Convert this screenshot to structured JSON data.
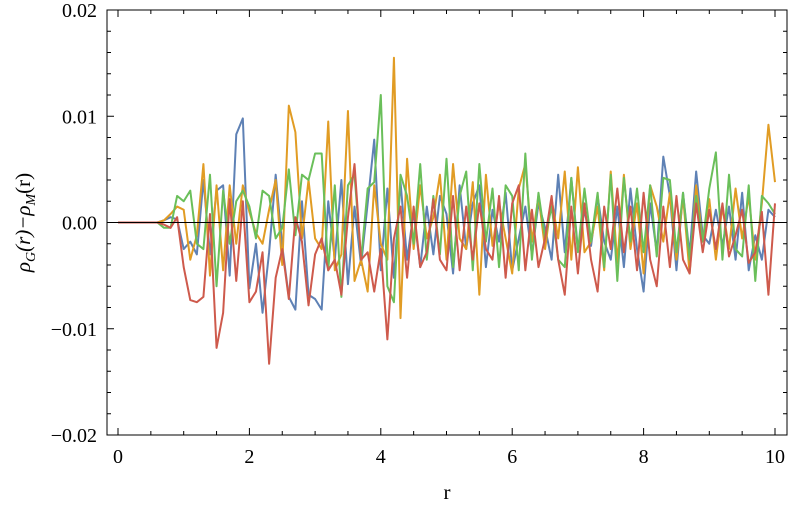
{
  "chart_data": {
    "type": "line",
    "title": "",
    "xlabel": "r",
    "ylabel": "ρ_G(r)−ρ_M(r)",
    "xlim": [
      0,
      10
    ],
    "ylim": [
      -0.02,
      0.02
    ],
    "x_ticks": [
      0,
      2,
      4,
      6,
      8,
      10
    ],
    "y_ticks": [
      -0.02,
      -0.01,
      0.0,
      0.01,
      0.02
    ],
    "x_tick_labels": [
      "0",
      "2",
      "4",
      "6",
      "8",
      "10"
    ],
    "y_tick_labels": [
      "−0.02",
      "−0.01",
      "0.00",
      "0.01",
      "0.02"
    ],
    "grid": false,
    "zero_line": true,
    "x": [
      0.0,
      0.1,
      0.2,
      0.3,
      0.4,
      0.5,
      0.6,
      0.7,
      0.8,
      0.9,
      1.0,
      1.1,
      1.2,
      1.3,
      1.4,
      1.5,
      1.6,
      1.7,
      1.8,
      1.9,
      2.0,
      2.1,
      2.2,
      2.3,
      2.4,
      2.5,
      2.6,
      2.7,
      2.8,
      2.9,
      3.0,
      3.1,
      3.2,
      3.3,
      3.4,
      3.5,
      3.6,
      3.7,
      3.8,
      3.9,
      4.0,
      4.1,
      4.2,
      4.3,
      4.4,
      4.5,
      4.6,
      4.7,
      4.8,
      4.9,
      5.0,
      5.1,
      5.2,
      5.3,
      5.4,
      5.5,
      5.6,
      5.7,
      5.8,
      5.9,
      6.0,
      6.1,
      6.2,
      6.3,
      6.4,
      6.5,
      6.6,
      6.7,
      6.8,
      6.9,
      7.0,
      7.1,
      7.2,
      7.3,
      7.4,
      7.5,
      7.6,
      7.7,
      7.8,
      7.9,
      8.0,
      8.1,
      8.2,
      8.3,
      8.4,
      8.5,
      8.6,
      8.7,
      8.8,
      8.9,
      9.0,
      9.1,
      9.2,
      9.3,
      9.4,
      9.5,
      9.6,
      9.7,
      9.8,
      9.9,
      10.0
    ],
    "series": [
      {
        "color": "#5e81b5",
        "values": [
          0,
          0,
          0,
          0,
          0,
          0,
          0,
          0.0002,
          0.0005,
          0.0003,
          -0.0025,
          -0.0018,
          -0.003,
          0.004,
          -0.003,
          0.003,
          0.0035,
          -0.005,
          0.0083,
          0.0098,
          -0.0062,
          -0.002,
          -0.0085,
          -0.0028,
          0.0045,
          -0.0022,
          -0.007,
          -0.0082,
          0.002,
          -0.0068,
          -0.0072,
          -0.0082,
          0.002,
          -0.0035,
          0.004,
          -0.0058,
          0.0015,
          -0.004,
          0.0018,
          0.0078,
          -0.0045,
          0.0032,
          -0.0052,
          0.0038,
          -0.0035,
          0.001,
          -0.0042,
          0.0015,
          -0.003,
          0.0025,
          0.0008,
          -0.0048,
          0.0035,
          -0.0025,
          0.0018,
          0.0035,
          -0.0042,
          0.0012,
          -0.0018,
          0.0028,
          -0.0045,
          -0.0015,
          0.0015,
          -0.003,
          0.0018,
          -0.0005,
          -0.0035,
          0.0045,
          -0.0028,
          0.0042,
          -0.0025,
          0.0012,
          -0.0022,
          0.0025,
          -0.0018,
          -0.0035,
          0.0015,
          -0.0042,
          0.0032,
          -0.0025,
          -0.0065,
          0.0018,
          -0.0028,
          0.0062,
          0.0025,
          -0.0045,
          0.0028,
          -0.003,
          0.0048,
          -0.0012,
          -0.002,
          0.0012,
          -0.0022,
          0.0015,
          -0.0035,
          0.0028,
          -0.0045,
          -0.0012,
          -0.0035,
          0.0012,
          0.0005
        ]
      },
      {
        "color": "#e19c24",
        "values": [
          0,
          0,
          0,
          0,
          0,
          0,
          0,
          0.0002,
          0.0008,
          0.0015,
          0.0012,
          -0.0035,
          -0.0012,
          0.0055,
          -0.005,
          0.0035,
          -0.0045,
          0.0035,
          -0.002,
          0.0035,
          0.001,
          -0.001,
          -0.002,
          0.0012,
          0.004,
          -0.004,
          0.011,
          0.0085,
          -0.0015,
          0.004,
          -0.0015,
          -0.0025,
          0.0095,
          -0.0045,
          -0.003,
          0.0105,
          -0.0055,
          -0.0035,
          -0.0065,
          0.0035,
          -0.002,
          -0.0035,
          0.0155,
          -0.009,
          0.006,
          -0.0025,
          0.0035,
          -0.0015,
          0.0005,
          0.0045,
          -0.0035,
          0.0055,
          -0.0015,
          -0.0025,
          0.0038,
          -0.0068,
          0.0045,
          -0.0022,
          0.0018,
          -0.0015,
          -0.0048,
          0.0032,
          0.0055,
          -0.0018,
          0.0025,
          -0.0025,
          0.0022,
          -0.0015,
          0.0048,
          -0.0035,
          0.0052,
          -0.0028,
          -0.0018,
          0.0015,
          -0.0045,
          0.0048,
          -0.0038,
          0.0045,
          -0.0025,
          0.0018,
          -0.0048,
          0.0035,
          0.0015,
          -0.0018,
          0.0028,
          -0.0035,
          0.0025,
          -0.0048,
          0.0035,
          -0.0018,
          0.0022,
          -0.0035,
          0.0015,
          -0.0025,
          0.0032,
          -0.0015,
          0.0025,
          -0.0035,
          0.0018,
          0.0092,
          0.0038
        ]
      },
      {
        "color": "#6abf5a",
        "values": [
          0,
          0,
          0,
          0,
          0,
          0,
          0,
          -0.0005,
          -0.0005,
          0.0025,
          0.002,
          0.003,
          -0.002,
          -0.0025,
          0.0045,
          -0.006,
          0.003,
          -0.002,
          0.002,
          0.003,
          0.0015,
          -0.0015,
          0.003,
          0.0025,
          -0.0015,
          -0.0005,
          0.005,
          -0.0012,
          0.0045,
          0.004,
          0.0065,
          0.0065,
          -0.0045,
          0.0035,
          -0.007,
          0.0035,
          0.0045,
          -0.0035,
          0.0032,
          0.0038,
          0.012,
          -0.006,
          -0.0075,
          0.0045,
          0.0025,
          -0.002,
          0.0055,
          -0.0035,
          0.0025,
          -0.003,
          0.006,
          -0.0042,
          0.0025,
          0.0048,
          -0.0045,
          0.0055,
          -0.0018,
          0.0032,
          -0.0042,
          0.0035,
          0.0025,
          -0.0045,
          0.0065,
          -0.0035,
          0.0028,
          -0.0015,
          0.0015,
          -0.0035,
          -0.0042,
          0.0042,
          -0.0028,
          0.0032,
          -0.0018,
          0.0028,
          -0.0042,
          0.0045,
          -0.0055,
          0.0042,
          -0.0018,
          0.0032,
          -0.0028,
          0.0035,
          -0.0032,
          0.0042,
          0.004,
          -0.0028,
          0.0028,
          -0.0035,
          0.0025,
          -0.0018,
          0.0032,
          0.0066,
          -0.0035,
          0.0045,
          -0.0025,
          -0.0032,
          0.0035,
          -0.0055,
          0.0025,
          0.0018,
          0.0008
        ]
      },
      {
        "color": "#ce5a4c",
        "values": [
          0,
          0,
          0,
          0,
          0,
          0,
          0,
          -0.0002,
          -0.0005,
          0.0005,
          -0.0042,
          -0.0073,
          -0.0075,
          -0.007,
          0.0008,
          -0.0118,
          -0.0085,
          0.0022,
          -0.0055,
          0.002,
          -0.0075,
          -0.0065,
          -0.0028,
          -0.0133,
          -0.0052,
          -0.0025,
          -0.0072,
          0.0005,
          -0.0018,
          -0.0078,
          -0.003,
          -0.0015,
          -0.0045,
          -0.0035,
          -0.0068,
          0.0005,
          0.0055,
          -0.0035,
          -0.0028,
          -0.0065,
          -0.0025,
          -0.011,
          -0.0015,
          0.0015,
          -0.0052,
          0.0015,
          -0.0042,
          -0.0028,
          0.0022,
          -0.0035,
          -0.0045,
          0.0025,
          -0.0045,
          0.0015,
          -0.0035,
          0.0018,
          -0.0025,
          -0.0035,
          0.0025,
          -0.0052,
          0.0018,
          0.0035,
          -0.0045,
          0.0012,
          -0.0042,
          -0.0015,
          0.0025,
          -0.0035,
          -0.0068,
          0.0015,
          -0.0048,
          0.0018,
          -0.0035,
          -0.0065,
          0.0015,
          -0.0025,
          0.0032,
          -0.0028,
          0.0015,
          -0.0045,
          0.0028,
          -0.0035,
          -0.006,
          0.0015,
          -0.0042,
          0.0025,
          -0.0035,
          -0.0048,
          0.0018,
          -0.0028,
          0.0012,
          -0.0025,
          0.0018,
          -0.0032,
          -0.0012,
          0.0012,
          -0.0038,
          -0.0028,
          0.001,
          -0.0068,
          0.0018
        ]
      }
    ]
  }
}
